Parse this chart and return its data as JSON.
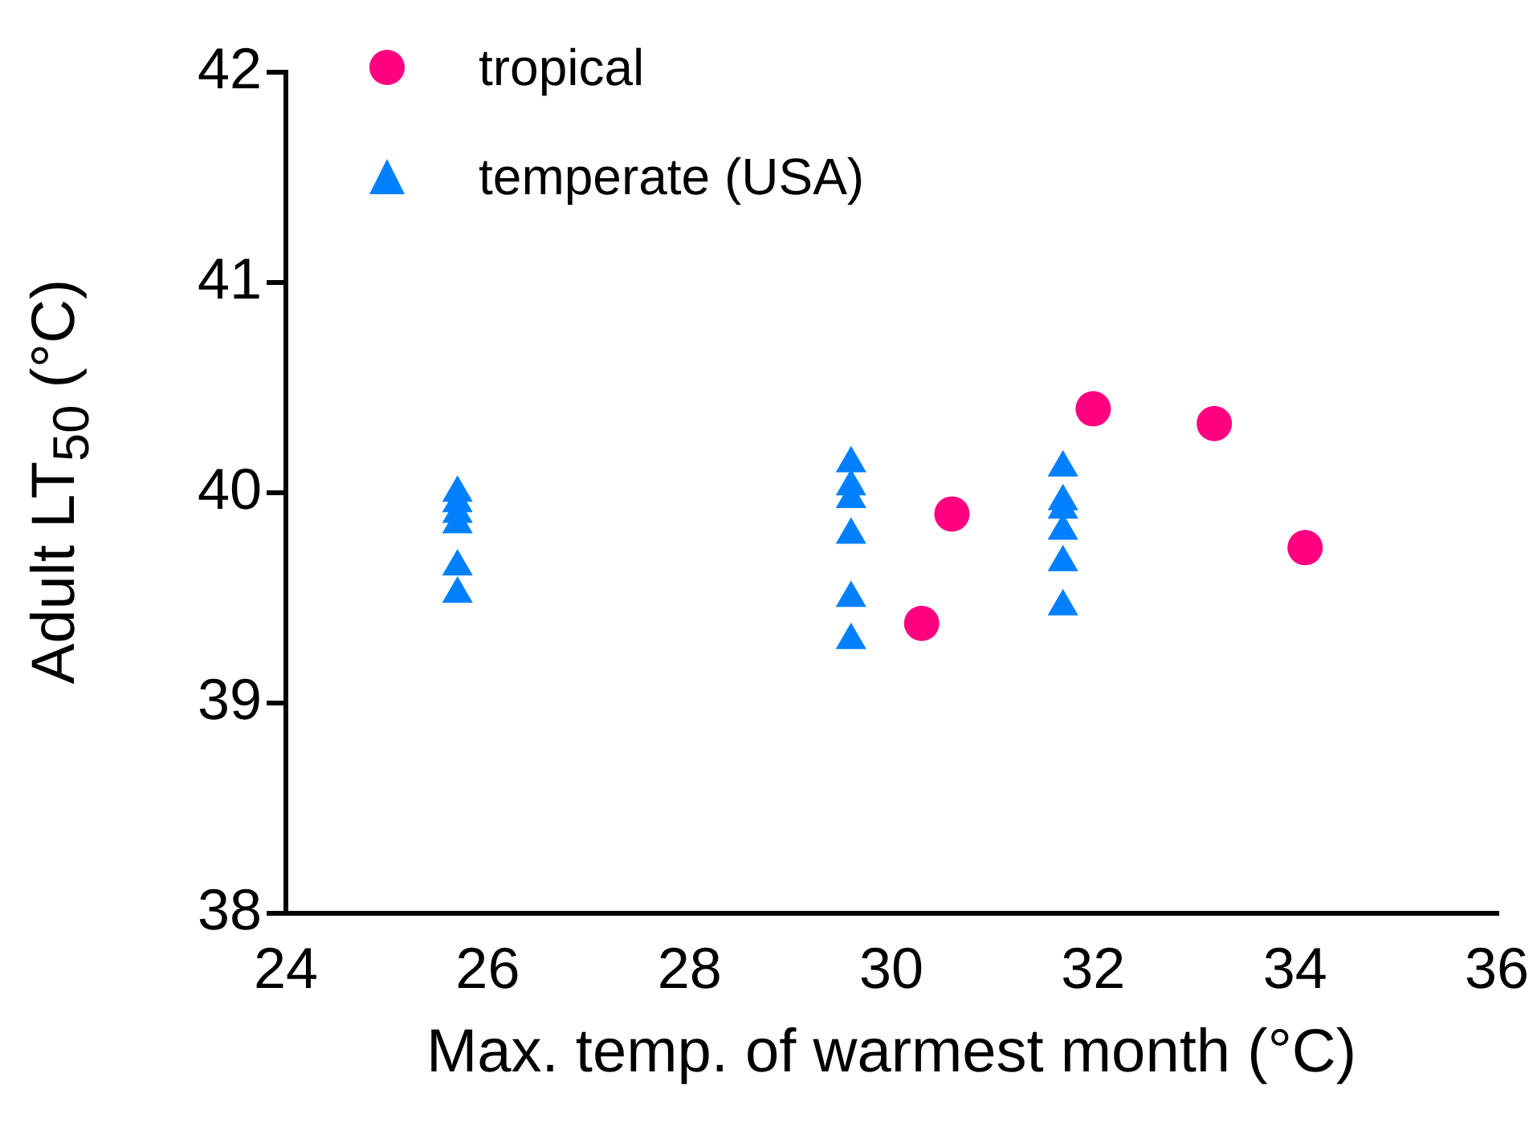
{
  "chart_data": {
    "type": "scatter",
    "xlabel": "Max. temp. of warmest month (°C)",
    "ylabel": "Adult LT$_{50}$ (°C)",
    "xlim": [
      24,
      36
    ],
    "xticks": [
      24,
      26,
      28,
      30,
      32,
      34,
      36
    ],
    "ylim": [
      38,
      42
    ],
    "yticks": [
      38,
      39,
      40,
      41,
      42
    ],
    "grid": false,
    "legend": "top left",
    "series": [
      {
        "name": "tropical",
        "color": "#ff0080",
        "marker": "circle",
        "x": [
          30.3,
          30.6,
          32,
          33.2,
          34.1
        ],
        "values": [
          39.38,
          39.9,
          40.4,
          40.33,
          39.74
        ]
      },
      {
        "name": "temperate (USA)",
        "color": "#0080ff",
        "marker": "triangle",
        "x": [
          25.7,
          25.7,
          25.7,
          25.7,
          25.7,
          25.7,
          29.6,
          29.6,
          29.6,
          29.6,
          29.6,
          29.6,
          31.7,
          31.7,
          31.7,
          31.7,
          31.7,
          31.7
        ],
        "values": [
          40.0,
          39.95,
          39.9,
          39.85,
          39.65,
          39.52,
          40.14,
          40.03,
          39.97,
          39.8,
          39.5,
          39.3,
          40.12,
          39.96,
          39.92,
          39.82,
          39.67,
          39.46
        ]
      }
    ]
  }
}
